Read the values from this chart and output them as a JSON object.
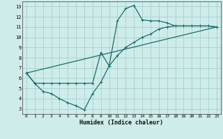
{
  "title": "",
  "xlabel": "Humidex (Indice chaleur)",
  "ylabel": "",
  "bg_color": "#ceecea",
  "grid_color": "#aad4d0",
  "line_color": "#1a6b6b",
  "xlim": [
    -0.5,
    23.5
  ],
  "ylim": [
    2.5,
    13.5
  ],
  "xticks": [
    0,
    1,
    2,
    3,
    4,
    5,
    6,
    7,
    8,
    9,
    10,
    11,
    12,
    13,
    14,
    15,
    16,
    17,
    18,
    19,
    20,
    21,
    22,
    23
  ],
  "yticks": [
    3,
    4,
    5,
    6,
    7,
    8,
    9,
    10,
    11,
    12,
    13
  ],
  "line1_x": [
    0,
    1,
    2,
    3,
    4,
    5,
    6,
    7,
    8,
    9,
    10,
    11,
    12,
    13,
    14,
    15,
    16,
    17,
    18,
    19,
    20,
    21,
    22,
    23
  ],
  "line1_y": [
    6.5,
    5.5,
    4.7,
    4.5,
    4.0,
    3.6,
    3.3,
    2.9,
    4.5,
    5.6,
    7.2,
    11.6,
    12.8,
    13.1,
    11.7,
    11.6,
    11.6,
    11.4,
    11.1,
    11.1,
    11.1,
    11.1,
    11.1,
    11.0
  ],
  "line2_x": [
    0,
    1,
    2,
    3,
    4,
    5,
    6,
    7,
    8,
    9,
    10,
    11,
    12,
    13,
    14,
    15,
    16,
    17,
    18,
    19,
    20,
    21,
    22,
    23
  ],
  "line2_y": [
    6.5,
    5.5,
    5.5,
    5.5,
    5.5,
    5.5,
    5.5,
    5.5,
    5.5,
    8.5,
    7.2,
    8.2,
    9.0,
    9.5,
    10.0,
    10.3,
    10.8,
    11.0,
    11.1,
    11.1,
    11.1,
    11.1,
    11.1,
    11.0
  ],
  "line3_x": [
    0,
    23
  ],
  "line3_y": [
    6.5,
    11.0
  ]
}
